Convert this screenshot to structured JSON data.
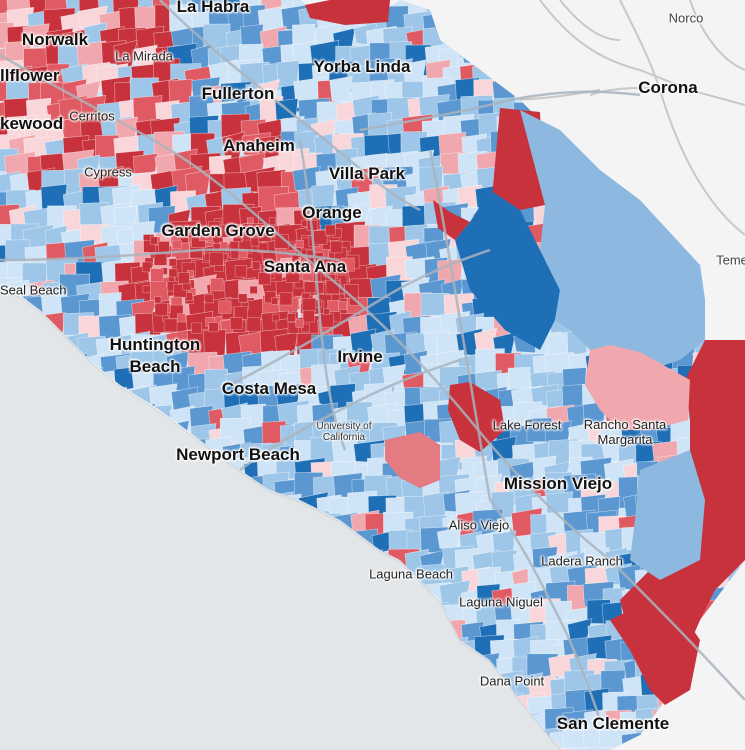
{
  "map": {
    "colors": {
      "ocean": "#e3e6e8",
      "land_outside": "#f4f4f4",
      "road_outside": "#c8c8c8",
      "dark_red": "#c8323c",
      "red": "#e05a64",
      "light_red": "#f0a8ae",
      "pale_red": "#f9d6d9",
      "pale_blue": "#cfe4f6",
      "light_blue": "#9ec6e8",
      "blue": "#5b97d1",
      "dark_blue": "#1f6fb7",
      "road": "#a9b3bd"
    },
    "labels": {
      "la_habra": "La Habra",
      "norco": "Norco",
      "norwalk": "Norwalk",
      "la_mirada": "La Mirada",
      "yorba_linda": "Yorba Linda",
      "bellflower": "llflower",
      "fullerton": "Fullerton",
      "corona": "Corona",
      "lakewood": "kewood",
      "cerritos": "Cerritos",
      "anaheim": "Anaheim",
      "cypress": "Cypress",
      "villa_park": "Villa Park",
      "orange": "Orange",
      "garden_grove": "Garden Grove",
      "temecula_cut": "Teme",
      "santa_ana": "Santa Ana",
      "seal_beach": "Seal Beach",
      "huntington": "Huntington",
      "beach": "Beach",
      "irvine": "Irvine",
      "costa_mesa": "Costa Mesa",
      "university_line1": "University of",
      "university_line2": "California",
      "lake_forest": "Lake Forest",
      "rancho_line1": "Rancho Santa",
      "rancho_line2": "Margarita",
      "newport_beach": "Newport Beach",
      "mission_viejo": "Mission Viejo",
      "aliso_viejo": "Aliso Viejo",
      "ladera_ranch": "Ladera Ranch",
      "laguna_beach": "Laguna Beach",
      "laguna_niguel": "Laguna Niguel",
      "dana_point": "Dana Point",
      "san_clemente": "San Clemente"
    }
  }
}
